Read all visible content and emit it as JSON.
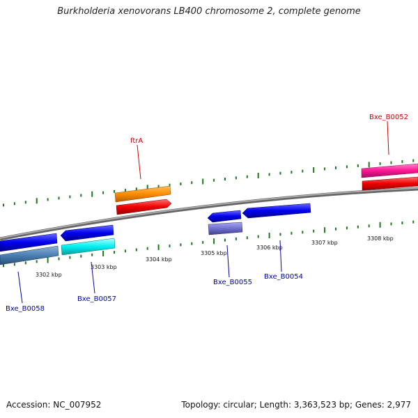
{
  "title": "Burkholderia xenovorans LB400 chromosome 2, complete genome",
  "footer": {
    "accession": "Accession: NC_007952",
    "topology": "Topology: circular; Length: 3,363,523 bp; Genes: 2,977"
  },
  "scale_labels": [
    "3302 kbp",
    "3303 kbp",
    "3304 kbp",
    "3305 kbp",
    "3306 kbp",
    "3307 kbp",
    "3308 kbp"
  ],
  "gene_labels": {
    "ftrA": "ftrA",
    "bxe_b0052": "Bxe_B0052",
    "bxe_b0055": "Bxe_B0055",
    "bxe_b0054": "Bxe_B0054",
    "bxe_b0057": "Bxe_B0057",
    "bxe_b0058": "Bxe_B0058"
  },
  "colors": {
    "backbone": "#888888",
    "tick": "#1a7a1a",
    "label_forward": "#cc0000",
    "label_reverse": "#0000aa"
  }
}
